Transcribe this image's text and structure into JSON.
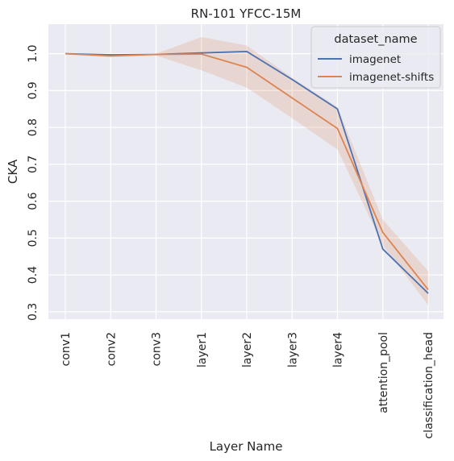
{
  "chart_data": {
    "type": "line",
    "title": "RN-101  YFCC-15M",
    "xlabel": "Layer Name",
    "ylabel": "CKA",
    "categories": [
      "conv1",
      "conv2",
      "conv3",
      "layer1",
      "layer2",
      "layer3",
      "layer4",
      "attention_pool",
      "classification_head"
    ],
    "ylim": [
      0.28,
      1.08
    ],
    "yticks": [
      0.3,
      0.4,
      0.5,
      0.6,
      0.7,
      0.8,
      0.9,
      1.0
    ],
    "ytick_labels": [
      "0.3",
      "0.4",
      "0.5",
      "0.6",
      "0.7",
      "0.8",
      "0.9",
      "1.0"
    ],
    "grid": true,
    "legend": {
      "title": "dataset_name",
      "placement": "top-right"
    },
    "series": [
      {
        "name": "imagenet",
        "color": "#4c72b0",
        "values": [
          1.0,
          0.997,
          0.998,
          1.002,
          1.006,
          0.93,
          0.85,
          0.47,
          0.35
        ]
      },
      {
        "name": "imagenet-shifts",
        "color": "#dd8452",
        "values": [
          1.0,
          0.994,
          0.998,
          0.999,
          0.963,
          0.88,
          0.797,
          0.515,
          0.36
        ],
        "ci_lower": [
          0.998,
          0.99,
          0.995,
          0.955,
          0.908,
          0.825,
          0.74,
          0.48,
          0.318
        ],
        "ci_upper": [
          1.002,
          0.998,
          1.0,
          1.045,
          1.022,
          0.935,
          0.855,
          0.55,
          0.41
        ]
      }
    ]
  }
}
